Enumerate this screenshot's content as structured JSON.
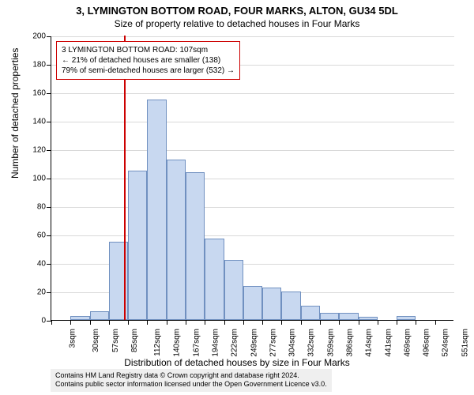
{
  "title": "3, LYMINGTON BOTTOM ROAD, FOUR MARKS, ALTON, GU34 5DL",
  "subtitle": "Size of property relative to detached houses in Four Marks",
  "y_axis_title": "Number of detached properties",
  "x_axis_title": "Distribution of detached houses by size in Four Marks",
  "attribution_line1": "Contains HM Land Registry data © Crown copyright and database right 2024.",
  "attribution_line2": "Contains public sector information licensed under the Open Government Licence v3.0.",
  "info_box": {
    "line1": "3 LYMINGTON BOTTOM ROAD: 107sqm",
    "line2": "← 21% of detached houses are smaller (138)",
    "line3": "79% of semi-detached houses are larger (532) →"
  },
  "chart": {
    "type": "histogram",
    "bar_fill": "#c8d8f0",
    "bar_stroke": "#7090c0",
    "marker_color": "#cc0000",
    "background_color": "#ffffff",
    "marker_x_value": 107,
    "x_start": 3,
    "x_bin_width": 27.4,
    "x_labels": [
      "3sqm",
      "30sqm",
      "57sqm",
      "85sqm",
      "112sqm",
      "140sqm",
      "167sqm",
      "194sqm",
      "222sqm",
      "249sqm",
      "277sqm",
      "304sqm",
      "332sqm",
      "359sqm",
      "386sqm",
      "414sqm",
      "441sqm",
      "469sqm",
      "496sqm",
      "524sqm",
      "551sqm"
    ],
    "ylim": [
      0,
      200
    ],
    "ytick_step": 20,
    "values": [
      0,
      3,
      6,
      55,
      105,
      155,
      113,
      104,
      57,
      42,
      24,
      23,
      20,
      10,
      5,
      5,
      2,
      0,
      3,
      0,
      0
    ]
  }
}
